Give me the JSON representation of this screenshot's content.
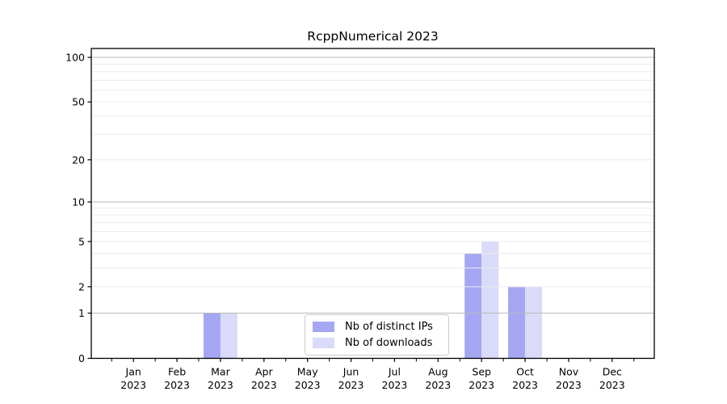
{
  "chart_data": {
    "type": "bar",
    "title": "RcppNumerical 2023",
    "x_tick_labels": [
      {
        "line1": "Jan",
        "line2": "2023"
      },
      {
        "line1": "Feb",
        "line2": "2023"
      },
      {
        "line1": "Mar",
        "line2": "2023"
      },
      {
        "line1": "Apr",
        "line2": "2023"
      },
      {
        "line1": "May",
        "line2": "2023"
      },
      {
        "line1": "Jun",
        "line2": "2023"
      },
      {
        "line1": "Jul",
        "line2": "2023"
      },
      {
        "line1": "Aug",
        "line2": "2023"
      },
      {
        "line1": "Sep",
        "line2": "2023"
      },
      {
        "line1": "Oct",
        "line2": "2023"
      },
      {
        "line1": "Nov",
        "line2": "2023"
      },
      {
        "line1": "Dec",
        "line2": "2023"
      }
    ],
    "series": [
      {
        "name": "Nb of distinct IPs",
        "color": "#a5a7f3",
        "values": [
          0,
          0,
          1,
          0,
          0,
          0,
          0,
          0,
          4,
          2,
          0,
          0
        ]
      },
      {
        "name": "Nb of downloads",
        "color": "#d9dbf8",
        "values": [
          0,
          0,
          1,
          0,
          0,
          0,
          0,
          0,
          5,
          2,
          0,
          0
        ]
      }
    ],
    "y_scale": "log10(1+y)",
    "y_tick_values": [
      0,
      1,
      2,
      5,
      10,
      20,
      50,
      100
    ],
    "grid": {
      "major_values": [
        1,
        10,
        100
      ],
      "minor_values": [
        2,
        3,
        4,
        5,
        6,
        7,
        8,
        9,
        20,
        30,
        40,
        50,
        60,
        70,
        80,
        90
      ]
    },
    "legend_position": "lower center",
    "colors": {
      "axis": "#000000",
      "major_grid": "#bababa",
      "minor_grid": "#ececec",
      "tick_label": "#000000"
    }
  }
}
